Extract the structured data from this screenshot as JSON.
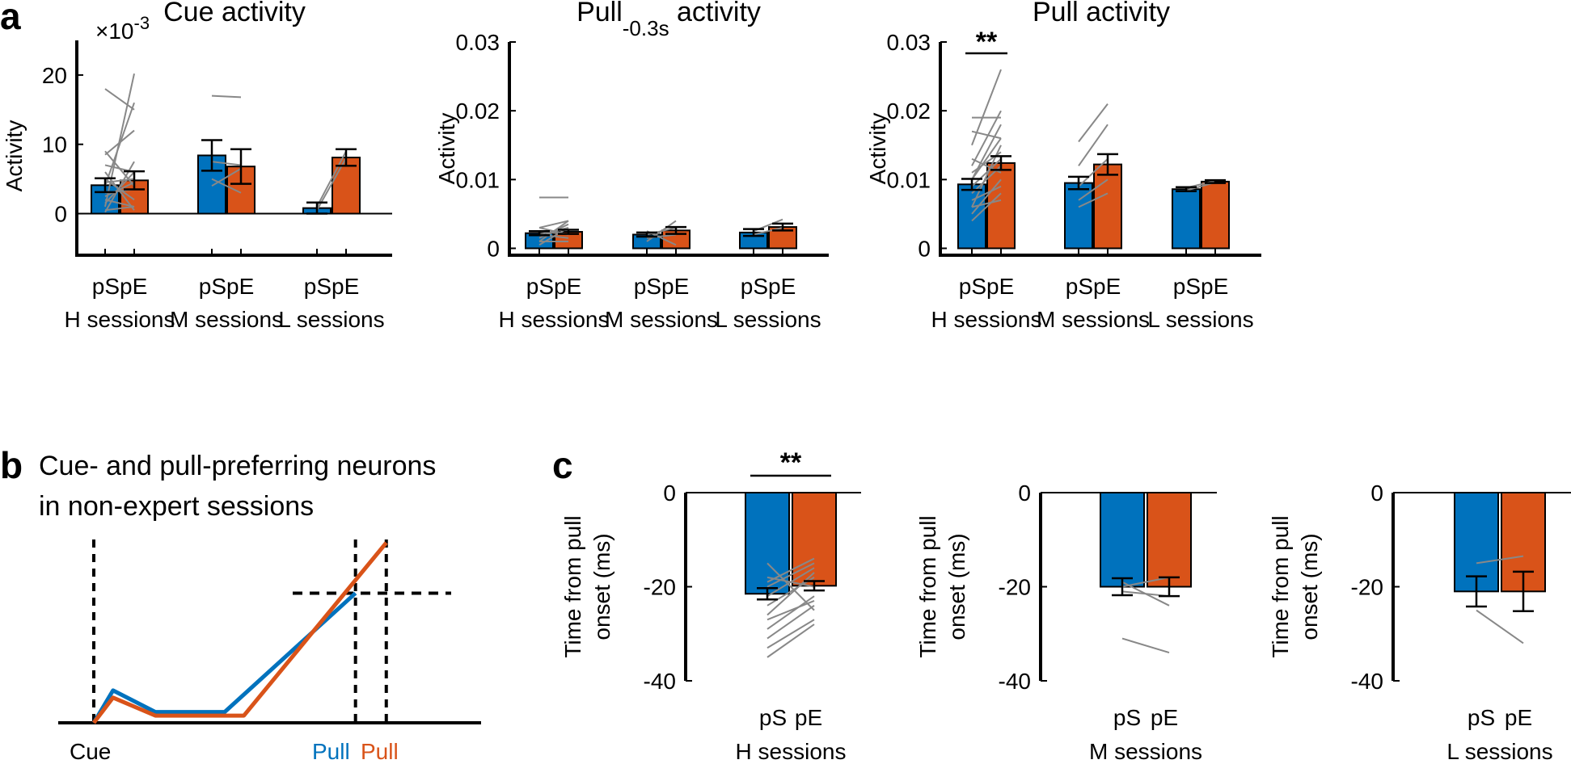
{
  "colors": {
    "pS": "#0072BD",
    "pE": "#D95319",
    "line": "#888888",
    "axis": "#000000"
  },
  "panel_labels": {
    "a": "a",
    "b": "b",
    "c": "c"
  },
  "charts_a": [
    {
      "id": "a1",
      "title": "Cue activity",
      "title_main": "Cue activity",
      "title_sub": "",
      "ylabel": "Activity",
      "exponent_label": "×10",
      "exponent_power": "-3",
      "ylim": [
        -6,
        25
      ],
      "zero_line": true,
      "yticks": [
        0,
        10,
        20
      ],
      "ytick_labels": [
        "0",
        "10",
        "20"
      ],
      "group_label": "pSpE",
      "sessions": [
        "H sessions",
        "M sessions",
        "L sessions"
      ],
      "bars": [
        {
          "pS": 4.1,
          "pS_err": 1.0,
          "pE": 4.8,
          "pE_err": 1.3
        },
        {
          "pS": 8.4,
          "pS_err": 2.2,
          "pE": 6.8,
          "pE_err": 2.5
        },
        {
          "pS": 0.8,
          "pS_err": 0.8,
          "pE": 8.1,
          "pE_err": 1.2
        }
      ],
      "pairs": [
        [
          [
            0.2,
            7.5
          ],
          [
            1.0,
            20.2
          ],
          [
            4.0,
            16.0
          ],
          [
            6.0,
            0.5
          ],
          [
            2.5,
            4.5
          ],
          [
            8.5,
            12.0
          ],
          [
            5.0,
            2.0
          ],
          [
            1.5,
            6.0
          ],
          [
            3.0,
            3.5
          ],
          [
            0.5,
            1.0
          ],
          [
            7.0,
            6.0
          ],
          [
            2.0,
            1.0
          ],
          [
            4.5,
            5.0
          ],
          [
            18.0,
            15.0
          ],
          [
            9.0,
            4.0
          ]
        ],
        [
          [
            17.0,
            16.8
          ],
          [
            5.0,
            3.0
          ],
          [
            7.5,
            7.0
          ],
          [
            4.0,
            6.5
          ]
        ],
        [
          [
            0.5,
            8.0
          ],
          [
            1.0,
            9.0
          ]
        ]
      ],
      "significance": ""
    },
    {
      "id": "a2",
      "title": "Pull-0.3s activity",
      "title_main": "Pull",
      "title_sub": "-0.3s",
      "title_tail": " activity",
      "ylabel": "Activity",
      "exponent_label": "",
      "exponent_power": "",
      "ylim": [
        -0.001,
        0.03
      ],
      "zero_line": false,
      "yticks": [
        0,
        0.01,
        0.02,
        0.03
      ],
      "ytick_labels": [
        "0",
        "0.01",
        "0.02",
        "0.03"
      ],
      "group_label": "pSpE",
      "sessions": [
        "H sessions",
        "M sessions",
        "L sessions"
      ],
      "bars": [
        {
          "pS": 0.0022,
          "pS_err": 0.0003,
          "pE": 0.0024,
          "pE_err": 0.0003
        },
        {
          "pS": 0.002,
          "pS_err": 0.0003,
          "pE": 0.0026,
          "pE_err": 0.0005
        },
        {
          "pS": 0.0023,
          "pS_err": 0.0005,
          "pE": 0.0031,
          "pE_err": 0.0005
        }
      ],
      "pairs": [
        [
          [
            0.0074,
            0.0074
          ],
          [
            0.001,
            0.004
          ],
          [
            0.002,
            0.003
          ],
          [
            0.003,
            0.002
          ],
          [
            0.0015,
            0.0035
          ],
          [
            0.001,
            0.001
          ],
          [
            0.0025,
            0.002
          ],
          [
            0.0005,
            0.003
          ],
          [
            0.002,
            0.0015
          ],
          [
            0.003,
            0.004
          ]
        ],
        [
          [
            0.001,
            0.004
          ],
          [
            0.002,
            0.003
          ],
          [
            0.0025,
            0.0005
          ],
          [
            0.0015,
            0.002
          ]
        ],
        [
          [
            0.0025,
            0.0042
          ],
          [
            0.002,
            0.003
          ]
        ]
      ],
      "significance": ""
    },
    {
      "id": "a3",
      "title": "Pull activity",
      "title_main": "Pull activity",
      "title_sub": "",
      "ylabel": "Activity",
      "exponent_label": "",
      "exponent_power": "",
      "ylim": [
        -0.001,
        0.03
      ],
      "zero_line": false,
      "yticks": [
        0,
        0.01,
        0.02,
        0.03
      ],
      "ytick_labels": [
        "0",
        "0.01",
        "0.02",
        "0.03"
      ],
      "group_label": "pSpE",
      "sessions": [
        "H sessions",
        "M sessions",
        "L sessions"
      ],
      "bars": [
        {
          "pS": 0.0093,
          "pS_err": 0.0008,
          "pE": 0.0124,
          "pE_err": 0.001
        },
        {
          "pS": 0.0095,
          "pS_err": 0.0009,
          "pE": 0.0122,
          "pE_err": 0.0015
        },
        {
          "pS": 0.0086,
          "pS_err": 0.0003,
          "pE": 0.0097,
          "pE_err": 0.0002
        }
      ],
      "pairs": [
        [
          [
            0.019,
            0.019
          ],
          [
            0.015,
            0.026
          ],
          [
            0.012,
            0.02
          ],
          [
            0.01,
            0.018
          ],
          [
            0.006,
            0.015
          ],
          [
            0.008,
            0.012
          ],
          [
            0.005,
            0.01
          ],
          [
            0.011,
            0.014
          ],
          [
            0.017,
            0.016
          ],
          [
            0.007,
            0.009
          ],
          [
            0.004,
            0.008
          ],
          [
            0.009,
            0.013
          ],
          [
            0.013,
            0.011
          ],
          [
            0.006,
            0.007
          ],
          [
            0.01,
            0.016
          ]
        ],
        [
          [
            0.0155,
            0.021
          ],
          [
            0.012,
            0.018
          ],
          [
            0.009,
            0.013
          ],
          [
            0.007,
            0.01
          ],
          [
            0.006,
            0.008
          ]
        ],
        [
          [
            0.0088,
            0.0098
          ],
          [
            0.0084,
            0.0096
          ]
        ]
      ],
      "significance": "**"
    }
  ],
  "panel_b": {
    "title_lines": [
      "Cue- and pull-preferring neurons",
      "in non-expert sessions"
    ],
    "x_labels": {
      "cue": "Cue",
      "pull_blue": "Pull",
      "pull_orange": "Pull"
    },
    "blue_trace": [
      [
        0,
        0
      ],
      [
        0.05,
        0.18
      ],
      [
        0.16,
        0.06
      ],
      [
        0.34,
        0.06
      ],
      [
        0.68,
        0.72
      ]
    ],
    "orange_trace": [
      [
        0,
        0
      ],
      [
        0.05,
        0.14
      ],
      [
        0.16,
        0.04
      ],
      [
        0.39,
        0.04
      ],
      [
        0.76,
        1.0
      ]
    ],
    "threshold": 0.72
  },
  "charts_c": [
    {
      "id": "c1",
      "ylabel_lines": [
        "Time from pull",
        "onset (ms)"
      ],
      "ylim": [
        -40,
        0
      ],
      "yticks": [
        0,
        -20,
        -40
      ],
      "ytick_labels": [
        "0",
        "-20",
        "-40"
      ],
      "categories": [
        "pS",
        "pE"
      ],
      "session": "H sessions",
      "values": [
        -21.5,
        -19.8
      ],
      "errors": [
        1.2,
        1.0
      ],
      "pairs": [
        [
          -15.0,
          -25.0
        ],
        [
          -19.0,
          -14.0
        ],
        [
          -24.0,
          -18.0
        ],
        [
          -29.0,
          -22.0
        ],
        [
          -35.0,
          -28.0
        ],
        [
          -26.0,
          -17.0
        ],
        [
          -22.0,
          -16.0
        ],
        [
          -31.0,
          -24.0
        ],
        [
          -18.0,
          -20.0
        ],
        [
          -33.0,
          -27.0
        ],
        [
          -20.0,
          -15.0
        ],
        [
          -27.0,
          -23.0
        ]
      ],
      "significance": "**"
    },
    {
      "id": "c2",
      "ylabel_lines": [
        "Time from pull",
        "onset (ms)"
      ],
      "ylim": [
        -40,
        0
      ],
      "yticks": [
        0,
        -20,
        -40
      ],
      "ytick_labels": [
        "0",
        "-20",
        "-40"
      ],
      "categories": [
        "pS",
        "pE"
      ],
      "session": "M sessions",
      "values": [
        -20.0,
        -20.0
      ],
      "errors": [
        1.8,
        2.0
      ],
      "pairs": [
        [
          -31.0,
          -34.0
        ],
        [
          -20.0,
          -18.0
        ],
        [
          -21.0,
          -22.0
        ],
        [
          -19.0,
          -24.0
        ]
      ],
      "significance": ""
    },
    {
      "id": "c3",
      "ylabel_lines": [
        "Time from pull",
        "onset (ms)"
      ],
      "ylim": [
        -40,
        0
      ],
      "yticks": [
        0,
        -20,
        -40
      ],
      "ytick_labels": [
        "0",
        "-20",
        "-40"
      ],
      "categories": [
        "pS",
        "pE"
      ],
      "session": "L sessions",
      "values": [
        -21.0,
        -21.0
      ],
      "errors": [
        3.2,
        4.2
      ],
      "pairs": [
        [
          -15.0,
          -13.5
        ],
        [
          -25.0,
          -32.0
        ]
      ],
      "significance": ""
    }
  ]
}
